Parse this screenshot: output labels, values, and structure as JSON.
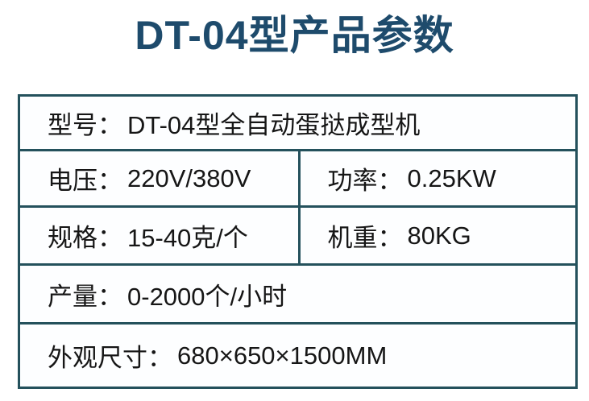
{
  "title": "DT-04型产品参数",
  "colors": {
    "title_blue": "#1e4b6c",
    "table_border": "#24515c",
    "text": "#161616",
    "page_bg": "#ffffff"
  },
  "table": {
    "rows": [
      {
        "cells": [
          {
            "label": "型号：",
            "value": "DT-04型全自动蛋挞成型机"
          }
        ]
      },
      {
        "cells": [
          {
            "label": "电压：",
            "value": "220V/380V"
          },
          {
            "label": "功率：",
            "value": "0.25KW"
          }
        ]
      },
      {
        "cells": [
          {
            "label": "规格：",
            "value": "15-40克/个"
          },
          {
            "label": "机重：",
            "value": "80KG"
          }
        ]
      },
      {
        "cells": [
          {
            "label": "产量：",
            "value": "0-2000个/小时"
          }
        ]
      },
      {
        "cells": [
          {
            "label": "外观尺寸：",
            "value": "680×650×1500MM"
          }
        ]
      }
    ]
  }
}
